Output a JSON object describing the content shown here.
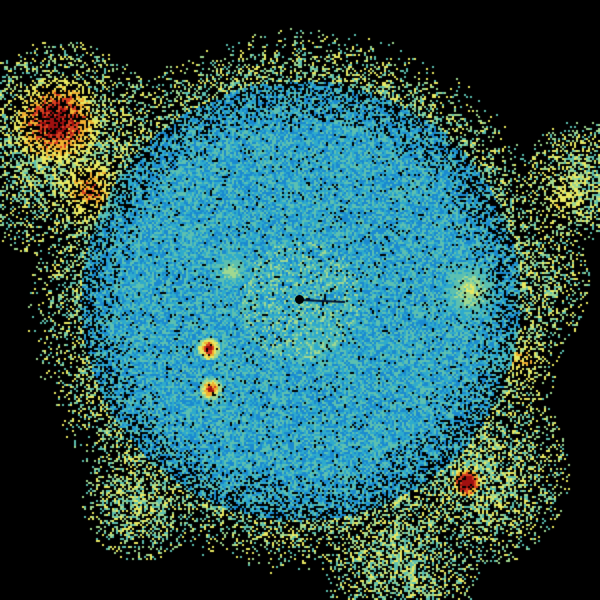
{
  "radar": {
    "background": "#000000",
    "palette": [
      "#0a3c8c",
      "#1060b8",
      "#1a8ad0",
      "#2eaacc",
      "#5cc0b0",
      "#a0d890",
      "#e8e860",
      "#f0b030",
      "#d84020",
      "#a01010"
    ],
    "center_marker": "radar-site-dot"
  }
}
